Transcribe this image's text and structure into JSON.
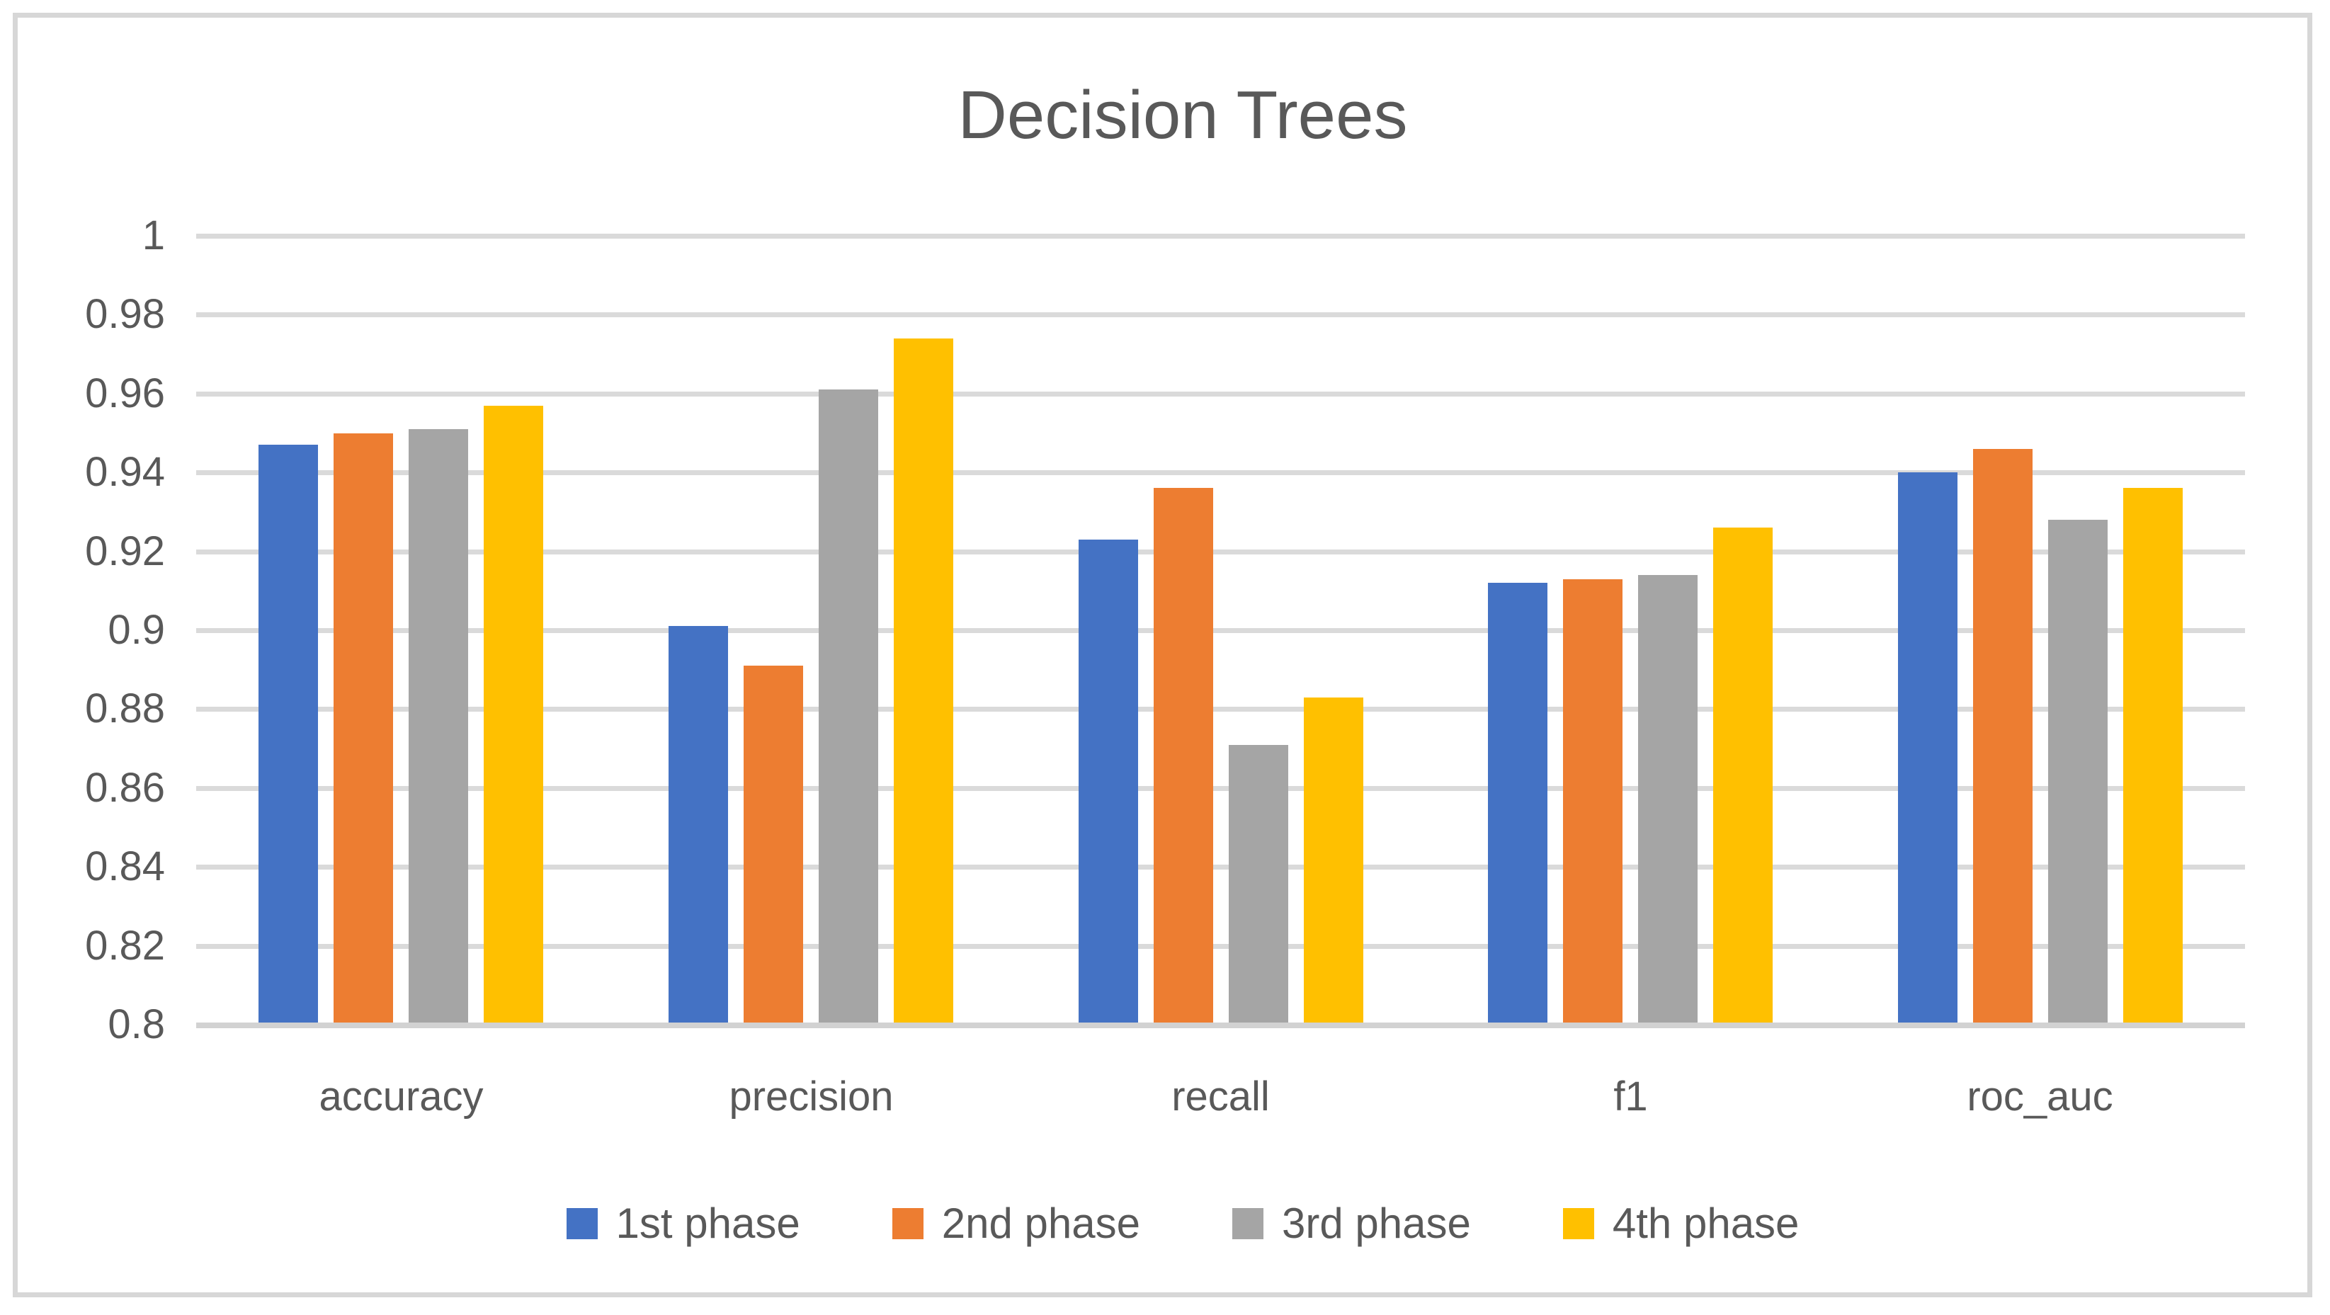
{
  "chart_data": {
    "type": "bar",
    "title": "Decision Trees",
    "categories": [
      "accuracy",
      "precision",
      "recall",
      "f1",
      "roc_auc"
    ],
    "series": [
      {
        "name": "1st phase",
        "color": "#4472C4",
        "values": [
          0.947,
          0.901,
          0.923,
          0.912,
          0.94
        ]
      },
      {
        "name": "2nd phase",
        "color": "#ED7D31",
        "values": [
          0.95,
          0.891,
          0.936,
          0.913,
          0.946
        ]
      },
      {
        "name": "3rd phase",
        "color": "#A5A5A5",
        "values": [
          0.951,
          0.961,
          0.871,
          0.914,
          0.928
        ]
      },
      {
        "name": "4th phase",
        "color": "#FFC000",
        "values": [
          0.957,
          0.974,
          0.883,
          0.926,
          0.936
        ]
      }
    ],
    "y_axis": {
      "min": 0.8,
      "max": 1.0,
      "step": 0.02,
      "tick_labels": [
        "1",
        "0.98",
        "0.96",
        "0.94",
        "0.92",
        "0.9",
        "0.88",
        "0.86",
        "0.84",
        "0.82",
        "0.8"
      ]
    },
    "grid": true,
    "legend_position": "bottom",
    "text_color": "#595959",
    "gridline_color": "#DADADA",
    "axis_line_color": "#D2D2D2",
    "frame_border_color": "#D7D7D7"
  }
}
